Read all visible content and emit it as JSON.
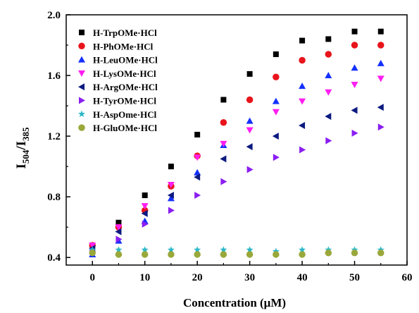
{
  "chart_data": {
    "type": "scatter",
    "xlabel": "Concentration (μM)",
    "ylabel": {
      "main": "I",
      "sub1": "504",
      "sep": "/I",
      "sub2": "385"
    },
    "xlim": [
      -5,
      60
    ],
    "ylim": [
      0.35,
      2.0
    ],
    "xticks": [
      0,
      10,
      20,
      30,
      40,
      50,
      60
    ],
    "yticks": [
      0.4,
      0.8,
      1.2,
      1.6,
      2.0
    ],
    "ytick_labels": [
      "0.4",
      "0.8",
      "1.2",
      "1.6",
      "2.0"
    ],
    "grid": false,
    "legend_position": "top-left",
    "x": [
      0,
      5,
      10,
      15,
      20,
      25,
      30,
      35,
      40,
      45,
      50,
      55
    ],
    "series": [
      {
        "name": "H-TrpOMe·HCl",
        "marker": "square",
        "color": "#000000",
        "values": [
          0.48,
          0.63,
          0.81,
          1.0,
          1.21,
          1.44,
          1.61,
          1.74,
          1.83,
          1.84,
          1.89,
          1.89
        ]
      },
      {
        "name": "H-PhOMe·HCl",
        "marker": "circle",
        "color": "#e8141c",
        "values": [
          0.48,
          0.6,
          0.71,
          0.87,
          1.07,
          1.29,
          1.44,
          1.59,
          1.7,
          1.74,
          1.8,
          1.8
        ]
      },
      {
        "name": "H-LeuOMe·HCl",
        "marker": "triangle-up",
        "color": "#1430ff",
        "values": [
          0.42,
          0.51,
          0.64,
          0.79,
          0.96,
          1.14,
          1.3,
          1.43,
          1.53,
          1.6,
          1.65,
          1.68
        ]
      },
      {
        "name": "H-LysOMe·HCl",
        "marker": "triangle-down",
        "color": "#ff1ef0",
        "values": [
          0.48,
          0.6,
          0.74,
          0.88,
          1.06,
          1.15,
          1.24,
          1.36,
          1.43,
          1.49,
          1.54,
          1.58
        ]
      },
      {
        "name": "H-ArgOMe·HCl",
        "marker": "triangle-left",
        "color": "#0c1a80",
        "values": [
          0.46,
          0.57,
          0.69,
          0.81,
          0.93,
          1.05,
          1.13,
          1.2,
          1.27,
          1.33,
          1.37,
          1.39
        ]
      },
      {
        "name": "H-TyrOMe·HCl",
        "marker": "triangle-right",
        "color": "#8a1ef0",
        "values": [
          0.44,
          0.52,
          0.62,
          0.71,
          0.81,
          0.9,
          0.98,
          1.06,
          1.11,
          1.17,
          1.22,
          1.26
        ]
      },
      {
        "name": "H-AspOme·HCl",
        "marker": "star",
        "color": "#2ab8c8",
        "values": [
          0.45,
          0.45,
          0.45,
          0.45,
          0.45,
          0.45,
          0.45,
          0.44,
          0.45,
          0.45,
          0.45,
          0.45
        ]
      },
      {
        "name": "H-GluOMe·HCl",
        "marker": "circle",
        "color": "#9aa83a",
        "values": [
          0.43,
          0.42,
          0.42,
          0.42,
          0.42,
          0.42,
          0.42,
          0.42,
          0.42,
          0.43,
          0.43,
          0.43
        ]
      }
    ]
  }
}
